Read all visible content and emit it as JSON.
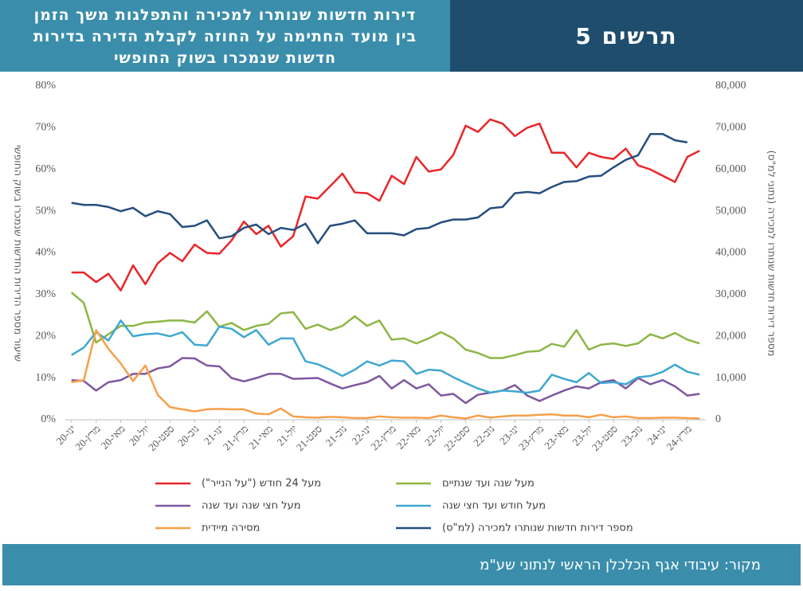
{
  "chart_data": {
    "type": "line",
    "title": [
      "דירות חדשות שנותרו למכירה והתפלגות משך הזמן",
      "בין מועד החתימה על החוזה לקבלת הדירה בדירות",
      "חדשות שנמכרו בשוק החופשי"
    ],
    "figure_label": "תרשים 5",
    "source": "מקור: עיבודי אגף הכלכלן הראשי לנתוני שע\"מ",
    "ylabel": "שיעור מספר הדירות החדשות שנמכרו בשוק החופשי",
    "y2label": "מספר דירות חדשות שנותרו למכירה (נתוני למ\"ס)",
    "categories": [
      "ינו-20",
      null,
      "מרץ-20",
      null,
      "מאי-20",
      null,
      "יול-20",
      null,
      "ספט-20",
      null,
      "נוב-20",
      null,
      "ינו-21",
      null,
      "מרץ-21",
      null,
      "מאי-21",
      null,
      "יול-21",
      null,
      "ספט-21",
      null,
      "נוב-21",
      null,
      "ינו-22",
      null,
      "מרץ-22",
      null,
      "מאי-22",
      null,
      "יול-22",
      null,
      "ספט-22",
      null,
      "נוב-22",
      null,
      "ינו-23",
      null,
      "מרץ-23",
      null,
      "מאי-23",
      null,
      "יול-23",
      null,
      "ספט-23",
      null,
      "נוב-23",
      null,
      "ינו-24",
      null,
      "מרץ-24",
      null
    ],
    "ylim": [
      0,
      80
    ],
    "yticks": [
      {
        "value": 0,
        "label": "0%"
      },
      {
        "value": 10,
        "label": "10%"
      },
      {
        "value": 20,
        "label": "20%"
      },
      {
        "value": 30,
        "label": "30%"
      },
      {
        "value": 40,
        "label": "40%"
      },
      {
        "value": 50,
        "label": "50%"
      },
      {
        "value": 60,
        "label": "60%"
      },
      {
        "value": 70,
        "label": "70%"
      },
      {
        "value": 80,
        "label": "80%"
      }
    ],
    "y2lim": [
      0,
      80000
    ],
    "y2ticks": [
      0,
      {
        "value": 10000,
        "label": "10,000"
      },
      {
        "value": 20000,
        "label": "20,000"
      },
      {
        "value": 30000,
        "label": "30,000"
      },
      {
        "value": 40000,
        "label": "40,000"
      },
      {
        "value": 50000,
        "label": "50,000"
      },
      {
        "value": 60000,
        "label": "60,000"
      },
      {
        "value": 70000,
        "label": "70,000"
      },
      {
        "value": 80000,
        "label": "80,000"
      }
    ],
    "grid": false,
    "series": [
      {
        "name": "מעל 24 חודש (\"על הנייר\")",
        "color": "#e8262a",
        "values": [
          35.3,
          35.3,
          33,
          35,
          31,
          37,
          32.5,
          37.5,
          40,
          38,
          42,
          40,
          39.8,
          43,
          47.5,
          44.5,
          46.5,
          41.5,
          44,
          53.5,
          53,
          56,
          59,
          54.5,
          54.3,
          52.5,
          58.5,
          56.5,
          63,
          59.5,
          60,
          63.5,
          70.5,
          69,
          72,
          71,
          68,
          70,
          71,
          64,
          64,
          60.5,
          64,
          63,
          62.5,
          65,
          61,
          60,
          58.5,
          57,
          63,
          64.5
        ]
      },
      {
        "name": "מעל שנה ועד שנתיים",
        "color": "#8db646",
        "values": [
          30.5,
          28,
          18.5,
          20.5,
          22.5,
          22.5,
          23.3,
          23.5,
          23.8,
          23.8,
          23.3,
          26,
          22.3,
          23.2,
          21.5,
          22.5,
          23,
          25.5,
          25.8,
          21.8,
          22.8,
          21.5,
          22.5,
          24.8,
          22.5,
          23.8,
          19.2,
          19.5,
          18.3,
          19.5,
          21,
          19.5,
          16.8,
          16,
          14.8,
          14.8,
          15.5,
          16.3,
          16.5,
          18.2,
          17.5,
          21.5,
          16.8,
          18,
          18.3,
          17.7,
          18.3,
          20.5,
          19.5,
          20.8,
          19.2,
          18.3
        ]
      },
      {
        "name": "מעל חצי שנה ועד שנה",
        "color": "#7e58a0",
        "values": [
          9.5,
          9.3,
          7,
          9,
          9.5,
          11,
          11,
          12.3,
          12.8,
          14.8,
          14.7,
          13,
          12.8,
          10,
          9.2,
          10,
          11,
          11,
          9.8,
          9.9,
          10,
          8.7,
          7.5,
          8.3,
          9,
          10.5,
          7.5,
          9.5,
          7.5,
          8.5,
          5.8,
          6.2,
          4,
          6,
          6.5,
          7,
          8.3,
          5.8,
          4.5,
          5.8,
          7,
          8,
          7.5,
          9,
          9.5,
          7.5,
          10,
          8.5,
          9.5,
          8,
          5.8,
          6.2
        ]
      },
      {
        "name": "מעל חודש ועד חצי שנה",
        "color": "#3ea8d0",
        "values": [
          15.5,
          17.3,
          21,
          19,
          23.8,
          20,
          20.5,
          20.7,
          20,
          21,
          18,
          17.8,
          22.3,
          21.8,
          19.8,
          21.5,
          18,
          19.5,
          19.5,
          14,
          13.3,
          12,
          10.5,
          12,
          14,
          13,
          14.2,
          14,
          11,
          12,
          11.8,
          10.2,
          8.8,
          7.5,
          6.5,
          7,
          6.8,
          6.5,
          7,
          10.8,
          9.8,
          9,
          11.2,
          8.8,
          9,
          8.5,
          10.2,
          10.5,
          11.5,
          13.2,
          11.5,
          10.8
        ]
      },
      {
        "name": "מסירה מיידית",
        "color": "#f7a04b",
        "values": [
          9,
          9.5,
          21.5,
          17,
          13.5,
          9.3,
          13,
          6,
          3,
          2.5,
          2,
          2.5,
          2.6,
          2.5,
          2.5,
          1.5,
          1.3,
          2.7,
          0.8,
          0.6,
          0.5,
          0.7,
          0.6,
          0.4,
          0.4,
          0.8,
          0.6,
          0.5,
          0.5,
          0.4,
          1,
          0.6,
          0.3,
          1,
          0.5,
          0.8,
          1,
          1,
          1.2,
          1.3,
          1,
          1,
          0.6,
          1.2,
          0.6,
          0.8,
          0.4,
          0.4,
          0.5,
          0.5,
          0.4,
          0.3
        ]
      },
      {
        "name": "מספר דירות חדשות שנותרו למכירה (למ\"ס)",
        "color": "#254e7f",
        "axis": "y2",
        "values": [
          52000,
          51500,
          51500,
          51000,
          50000,
          50800,
          48800,
          50000,
          49300,
          46200,
          46500,
          47800,
          43500,
          44000,
          46000,
          46800,
          44500,
          46000,
          45500,
          47000,
          42300,
          46500,
          47000,
          47800,
          44700,
          44700,
          44700,
          44200,
          45700,
          46000,
          47300,
          48000,
          48000,
          48500,
          50700,
          51000,
          54300,
          54600,
          54300,
          55800,
          57000,
          57200,
          58300,
          58500,
          60500,
          62300,
          63400,
          68500,
          68500,
          67000,
          66500,
          null
        ]
      }
    ]
  }
}
